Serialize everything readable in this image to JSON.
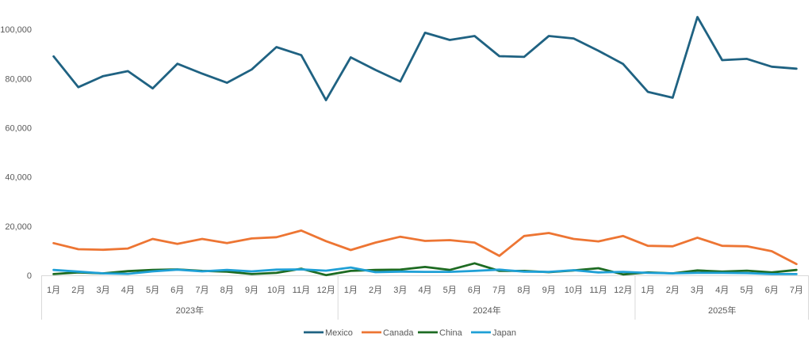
{
  "chart_data": {
    "type": "line",
    "title": "",
    "xlabel": "",
    "ylabel": "",
    "ylim": [
      0,
      110000
    ],
    "yticks": [
      0,
      20000,
      40000,
      60000,
      80000,
      100000
    ],
    "ytick_labels": [
      "0",
      "20,000",
      "40,000",
      "60,000",
      "80,000",
      "100,000"
    ],
    "grid": false,
    "legend_position": "bottom",
    "groups": [
      {
        "label": "2023年",
        "months": [
          "1月",
          "2月",
          "3月",
          "4月",
          "5月",
          "6月",
          "7月",
          "8月",
          "9月",
          "10月",
          "11月",
          "12月"
        ]
      },
      {
        "label": "2024年",
        "months": [
          "1月",
          "2月",
          "3月",
          "4月",
          "5月",
          "6月",
          "7月",
          "8月",
          "9月",
          "10月",
          "11月",
          "12月"
        ]
      },
      {
        "label": "2025年",
        "months": [
          "1月",
          "2月",
          "3月",
          "4月",
          "5月",
          "6月",
          "7月"
        ]
      }
    ],
    "series": [
      {
        "name": "Mexico",
        "color": "#1f6282",
        "values": [
          89000,
          76500,
          81000,
          83000,
          76000,
          86000,
          82000,
          78300,
          83700,
          92800,
          89500,
          71200,
          88600,
          83500,
          78800,
          98600,
          95700,
          97300,
          89100,
          88800,
          97300,
          96300,
          91300,
          85900,
          74600,
          72200,
          105000,
          87500,
          88000,
          84800,
          84000
        ]
      },
      {
        "name": "Canada",
        "color": "#ed7533",
        "values": [
          13100,
          10600,
          10400,
          10900,
          14800,
          12800,
          14800,
          13100,
          15000,
          15500,
          18200,
          13900,
          10300,
          13300,
          15700,
          14000,
          14300,
          13300,
          7900,
          16000,
          17200,
          14800,
          13800,
          16000,
          12000,
          11800,
          15300,
          12000,
          11800,
          9800,
          4600
        ]
      },
      {
        "name": "China",
        "color": "#1d6b22",
        "values": [
          500,
          1200,
          800,
          1700,
          2200,
          2400,
          1800,
          1500,
          500,
          1000,
          2700,
          100,
          1800,
          2200,
          2300,
          3400,
          2200,
          4900,
          1800,
          1800,
          1300,
          2000,
          2900,
          400,
          1200,
          800,
          2000,
          1500,
          1900,
          1200,
          2200
        ]
      },
      {
        "name": "Japan",
        "color": "#1fa0d6",
        "values": [
          2200,
          1500,
          800,
          600,
          1600,
          2300,
          1600,
          2200,
          1600,
          2300,
          2400,
          1900,
          3200,
          1300,
          1500,
          1400,
          1400,
          1800,
          2300,
          1500,
          1400,
          2100,
          1200,
          1400,
          1000,
          800,
          1000,
          1000,
          900,
          500,
          500
        ]
      }
    ]
  }
}
